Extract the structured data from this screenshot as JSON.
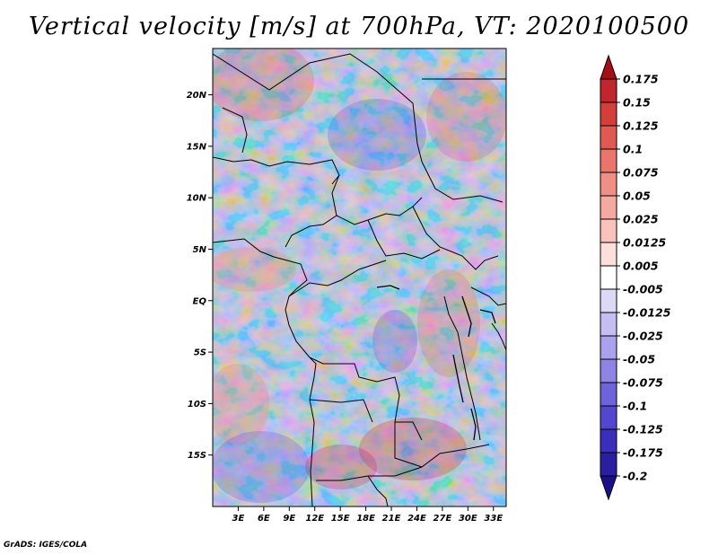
{
  "title": "Vertical velocity [m/s] at 700hPa, VT: 2020100500",
  "credit": "GrADS: IGES/COLA",
  "map": {
    "lat_labels": [
      "20N",
      "15N",
      "10N",
      "5N",
      "EQ",
      "5S",
      "10S",
      "15S"
    ],
    "lat_values": [
      20,
      15,
      10,
      5,
      0,
      -5,
      -10,
      -15
    ],
    "lon_labels": [
      "3E",
      "6E",
      "9E",
      "12E",
      "15E",
      "18E",
      "21E",
      "24E",
      "27E",
      "30E",
      "33E"
    ],
    "lon_values": [
      3,
      6,
      9,
      12,
      15,
      18,
      21,
      24,
      27,
      30,
      33
    ],
    "lon_range": [
      0,
      34.5
    ],
    "lat_range": [
      -20,
      24.5
    ]
  },
  "colorbar": {
    "labels": [
      "0.175",
      "0.15",
      "0.125",
      "0.1",
      "0.075",
      "0.05",
      "0.025",
      "0.0125",
      "0.005",
      "-0.005",
      "-0.0125",
      "-0.025",
      "-0.05",
      "-0.075",
      "-0.1",
      "-0.125",
      "-0.175",
      "-0.2"
    ],
    "colors": [
      "#a50f15",
      "#c0262b",
      "#d43f3a",
      "#e05a52",
      "#e9756b",
      "#ef8f85",
      "#f5a9a0",
      "#f9c3bc",
      "#fcdfdb",
      "#ffffff",
      "#dcd9f6",
      "#c4bef2",
      "#aaa2ec",
      "#8d84e4",
      "#6e63db",
      "#5247cf",
      "#3a2fbd",
      "#2a1fa0",
      "#1c108a"
    ]
  }
}
